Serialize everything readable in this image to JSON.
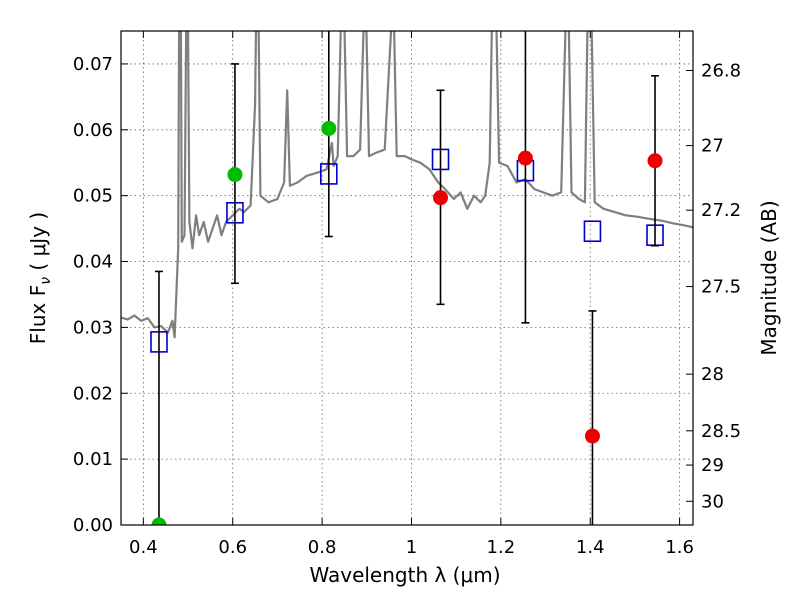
{
  "chart_data": {
    "type": "scatter",
    "xlabel": "Wavelength  λ (μm)",
    "ylabel": "Flux  F",
    "ylabel_sub": "ν",
    "ylabel_unit": " ( μJy )",
    "ylabel_right": "Magnitude (AB)",
    "xlim": [
      0.35,
      1.63
    ],
    "ylim": [
      0.0,
      0.075
    ],
    "grid": true,
    "x_ticks": [
      0.4,
      0.6,
      0.8,
      1.0,
      1.2,
      1.4,
      1.6
    ],
    "x_tick_labels": [
      "0.4",
      "0.6",
      "0.8",
      "1",
      "1.2",
      "1.4",
      "1.6"
    ],
    "y_ticks": [
      0.0,
      0.01,
      0.02,
      0.03,
      0.04,
      0.05,
      0.06,
      0.07
    ],
    "y_tick_labels": [
      "0.00",
      "0.01",
      "0.02",
      "0.03",
      "0.04",
      "0.05",
      "0.06",
      "0.07"
    ],
    "right_ticks": [
      {
        "flux": 0.069,
        "label": "26.8"
      },
      {
        "flux": 0.0576,
        "label": "27"
      },
      {
        "flux": 0.0478,
        "label": "27.2"
      },
      {
        "flux": 0.0362,
        "label": "27.5"
      },
      {
        "flux": 0.0229,
        "label": "28"
      },
      {
        "flux": 0.0143,
        "label": "28.5"
      },
      {
        "flux": 0.0091,
        "label": "29"
      },
      {
        "flux": 0.0036,
        "label": "30"
      }
    ],
    "colors": {
      "spectrum": "#7f7f7f",
      "model_box": "#0000cc",
      "green_points": "#00bb00",
      "red_points": "#ee0000",
      "errorbar": "#000000"
    },
    "spectrum": {
      "name": "",
      "points": [
        [
          0.35,
          0.0315
        ],
        [
          0.365,
          0.0312
        ],
        [
          0.38,
          0.0318
        ],
        [
          0.395,
          0.031
        ],
        [
          0.41,
          0.0314
        ],
        [
          0.425,
          0.03
        ],
        [
          0.44,
          0.0302
        ],
        [
          0.455,
          0.0292
        ],
        [
          0.465,
          0.031
        ],
        [
          0.47,
          0.0285
        ],
        [
          0.478,
          0.042
        ],
        [
          0.48,
          0.076
        ],
        [
          0.484,
          0.076
        ],
        [
          0.486,
          0.043
        ],
        [
          0.492,
          0.044
        ],
        [
          0.496,
          0.076
        ],
        [
          0.5,
          0.076
        ],
        [
          0.503,
          0.046
        ],
        [
          0.51,
          0.042
        ],
        [
          0.518,
          0.047
        ],
        [
          0.525,
          0.044
        ],
        [
          0.535,
          0.046
        ],
        [
          0.545,
          0.043
        ],
        [
          0.555,
          0.045
        ],
        [
          0.565,
          0.047
        ],
        [
          0.575,
          0.044
        ],
        [
          0.585,
          0.046
        ],
        [
          0.6,
          0.047
        ],
        [
          0.615,
          0.048
        ],
        [
          0.625,
          0.0475
        ],
        [
          0.64,
          0.0485
        ],
        [
          0.65,
          0.064
        ],
        [
          0.652,
          0.076
        ],
        [
          0.658,
          0.076
        ],
        [
          0.662,
          0.05
        ],
        [
          0.68,
          0.049
        ],
        [
          0.7,
          0.0495
        ],
        [
          0.715,
          0.052
        ],
        [
          0.722,
          0.066
        ],
        [
          0.728,
          0.0515
        ],
        [
          0.745,
          0.052
        ],
        [
          0.765,
          0.053
        ],
        [
          0.79,
          0.0535
        ],
        [
          0.81,
          0.054
        ],
        [
          0.822,
          0.058
        ],
        [
          0.826,
          0.0545
        ],
        [
          0.835,
          0.056
        ],
        [
          0.842,
          0.076
        ],
        [
          0.85,
          0.076
        ],
        [
          0.856,
          0.056
        ],
        [
          0.87,
          0.056
        ],
        [
          0.885,
          0.057
        ],
        [
          0.893,
          0.076
        ],
        [
          0.899,
          0.076
        ],
        [
          0.905,
          0.056
        ],
        [
          0.92,
          0.0565
        ],
        [
          0.94,
          0.057
        ],
        [
          0.955,
          0.076
        ],
        [
          0.961,
          0.076
        ],
        [
          0.967,
          0.056
        ],
        [
          0.985,
          0.056
        ],
        [
          1.0,
          0.0555
        ],
        [
          1.02,
          0.055
        ],
        [
          1.04,
          0.054
        ],
        [
          1.06,
          0.052
        ],
        [
          1.075,
          0.051
        ],
        [
          1.095,
          0.0495
        ],
        [
          1.11,
          0.0505
        ],
        [
          1.125,
          0.048
        ],
        [
          1.14,
          0.05
        ],
        [
          1.155,
          0.049
        ],
        [
          1.165,
          0.05
        ],
        [
          1.175,
          0.055
        ],
        [
          1.18,
          0.076
        ],
        [
          1.19,
          0.076
        ],
        [
          1.196,
          0.055
        ],
        [
          1.215,
          0.0545
        ],
        [
          1.235,
          0.052
        ],
        [
          1.255,
          0.0525
        ],
        [
          1.275,
          0.051
        ],
        [
          1.295,
          0.0505
        ],
        [
          1.315,
          0.05
        ],
        [
          1.335,
          0.0505
        ],
        [
          1.345,
          0.076
        ],
        [
          1.352,
          0.076
        ],
        [
          1.358,
          0.0505
        ],
        [
          1.375,
          0.0495
        ],
        [
          1.388,
          0.049
        ],
        [
          1.394,
          0.076
        ],
        [
          1.403,
          0.076
        ],
        [
          1.41,
          0.049
        ],
        [
          1.43,
          0.048
        ],
        [
          1.455,
          0.0475
        ],
        [
          1.48,
          0.047
        ],
        [
          1.505,
          0.0468
        ],
        [
          1.53,
          0.0465
        ],
        [
          1.56,
          0.0462
        ],
        [
          1.585,
          0.0458
        ],
        [
          1.61,
          0.0455
        ],
        [
          1.63,
          0.0452
        ]
      ]
    },
    "model_boxes": [
      {
        "x": 0.435,
        "y": 0.0278
      },
      {
        "x": 0.605,
        "y": 0.0474
      },
      {
        "x": 0.815,
        "y": 0.0533
      },
      {
        "x": 1.065,
        "y": 0.0555
      },
      {
        "x": 1.255,
        "y": 0.0538
      },
      {
        "x": 1.405,
        "y": 0.0446
      },
      {
        "x": 1.545,
        "y": 0.044
      }
    ],
    "green_points": [
      {
        "x": 0.435,
        "y": 0.0,
        "err_low": 0.0,
        "err_high": 0.0385
      },
      {
        "x": 0.605,
        "y": 0.0532,
        "err_low": 0.0367,
        "err_high": 0.07
      },
      {
        "x": 0.815,
        "y": 0.0602,
        "err_low": 0.0438,
        "err_high": 0.076
      }
    ],
    "red_points": [
      {
        "x": 1.065,
        "y": 0.0497,
        "err_low": 0.0335,
        "err_high": 0.066
      },
      {
        "x": 1.255,
        "y": 0.0557,
        "err_low": 0.0307,
        "err_high": 0.076
      },
      {
        "x": 1.405,
        "y": 0.0135,
        "err_low": 0.0,
        "err_high": 0.0325
      },
      {
        "x": 1.545,
        "y": 0.0553,
        "err_low": 0.0424,
        "err_high": 0.0682
      }
    ]
  }
}
